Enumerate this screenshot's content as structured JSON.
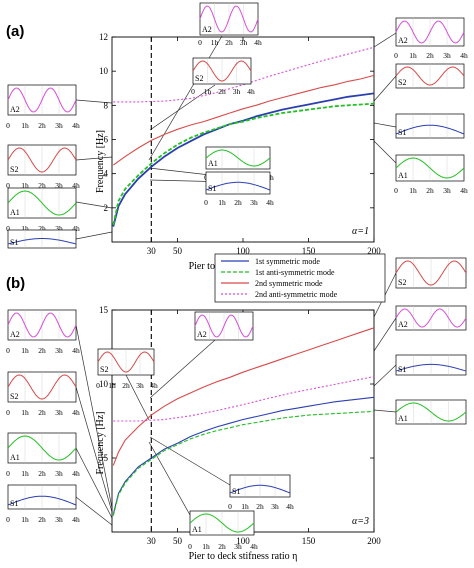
{
  "colors": {
    "sym1": "#2b3fb0",
    "anti1": "#22c122",
    "sym2": "#d94a4a",
    "anti2": "#d84fd8",
    "axis": "#000000",
    "leader": "#333333"
  },
  "legend": {
    "sym1": "1st symmetric mode",
    "anti1": "1st anti-symmetric mode",
    "sym2": "2nd symmetric mode",
    "anti2": "2nd anti-symmetric mode"
  },
  "inset_ticks": [
    "0",
    "1h",
    "2h",
    "3h",
    "4h"
  ],
  "chart_data": [
    {
      "panel": "(a)",
      "type": "line",
      "xlabel": "Pier to deck stifness ratio η",
      "ylabel": "Frequency [Hz]",
      "xlim": [
        0,
        200
      ],
      "ylim": [
        0,
        12
      ],
      "xticks": [
        "30",
        "50",
        "100",
        "150",
        "200"
      ],
      "yticks": [
        "2",
        "4",
        "6",
        "8",
        "10",
        "12"
      ],
      "annotation": "α=1",
      "marker_x": 30,
      "series": [
        {
          "key": "sym1",
          "x": [
            1,
            5,
            10,
            20,
            30,
            40,
            50,
            60,
            70,
            80,
            90,
            100,
            110,
            120,
            130,
            140,
            150,
            160,
            170,
            180,
            190,
            200
          ],
          "y": [
            0.9,
            2.1,
            2.8,
            3.7,
            4.4,
            5.0,
            5.5,
            5.9,
            6.3,
            6.6,
            6.9,
            7.1,
            7.35,
            7.55,
            7.75,
            7.9,
            8.05,
            8.2,
            8.35,
            8.5,
            8.6,
            8.7
          ]
        },
        {
          "key": "anti1",
          "x": [
            1,
            5,
            10,
            20,
            30,
            40,
            50,
            60,
            70,
            80,
            90,
            100,
            110,
            120,
            130,
            140,
            150,
            160,
            170,
            180,
            190,
            200
          ],
          "y": [
            1.0,
            2.4,
            3.1,
            3.9,
            4.6,
            5.2,
            5.7,
            6.1,
            6.4,
            6.65,
            6.9,
            7.05,
            7.25,
            7.4,
            7.55,
            7.65,
            7.75,
            7.85,
            7.95,
            8.0,
            8.05,
            8.1
          ]
        },
        {
          "key": "sym2",
          "x": [
            1,
            10,
            20,
            30,
            40,
            50,
            60,
            70,
            80,
            90,
            100,
            110,
            120,
            130,
            140,
            150,
            160,
            170,
            180,
            190,
            200
          ],
          "y": [
            4.5,
            5.0,
            5.5,
            5.95,
            6.3,
            6.6,
            6.85,
            7.05,
            7.3,
            7.55,
            7.8,
            8.0,
            8.25,
            8.45,
            8.65,
            8.85,
            9.05,
            9.2,
            9.4,
            9.55,
            9.75
          ]
        },
        {
          "key": "anti2",
          "x": [
            1,
            20,
            40,
            60,
            80,
            100,
            120,
            140,
            160,
            180,
            200
          ],
          "y": [
            8.2,
            8.2,
            8.25,
            8.4,
            8.75,
            9.2,
            9.7,
            10.15,
            10.6,
            11.0,
            11.4
          ]
        }
      ],
      "insets": [
        {
          "label": "A2",
          "mode": "anti2"
        },
        {
          "label": "S2",
          "mode": "sym2"
        },
        {
          "label": "A1",
          "mode": "anti1"
        },
        {
          "label": "S1",
          "mode": "sym1"
        },
        {
          "label": "A2",
          "mode": "anti2"
        },
        {
          "label": "S2",
          "mode": "sym2"
        },
        {
          "label": "A1",
          "mode": "anti1"
        },
        {
          "label": "S1",
          "mode": "sym1"
        },
        {
          "label": "A2",
          "mode": "anti2"
        },
        {
          "label": "S2",
          "mode": "sym2"
        },
        {
          "label": "S1",
          "mode": "sym1"
        },
        {
          "label": "A1",
          "mode": "anti1"
        }
      ]
    },
    {
      "panel": "(b)",
      "type": "line",
      "xlabel": "Pier to deck stifness ratio η",
      "ylabel": "Frequency [Hz]",
      "xlim": [
        0,
        200
      ],
      "ylim": [
        0,
        15
      ],
      "xticks": [
        "30",
        "50",
        "100",
        "150",
        "200"
      ],
      "yticks": [
        "5",
        "10",
        "15"
      ],
      "annotation": "α=3",
      "marker_x": 30,
      "series": [
        {
          "key": "sym1",
          "x": [
            1,
            5,
            10,
            20,
            30,
            40,
            50,
            60,
            70,
            80,
            90,
            100,
            110,
            120,
            130,
            140,
            150,
            160,
            170,
            180,
            190,
            200
          ],
          "y": [
            1.2,
            2.6,
            3.4,
            4.4,
            5.0,
            5.6,
            6.0,
            6.45,
            6.8,
            7.1,
            7.35,
            7.6,
            7.8,
            8.0,
            8.2,
            8.35,
            8.5,
            8.65,
            8.8,
            8.9,
            9.0,
            9.1
          ]
        },
        {
          "key": "anti1",
          "x": [
            1,
            5,
            10,
            20,
            30,
            40,
            50,
            60,
            70,
            80,
            90,
            100,
            110,
            120,
            130,
            140,
            150,
            160,
            170,
            180,
            190,
            200
          ],
          "y": [
            1.1,
            2.5,
            3.3,
            4.3,
            4.9,
            5.5,
            5.9,
            6.3,
            6.6,
            6.85,
            7.05,
            7.25,
            7.4,
            7.55,
            7.7,
            7.8,
            7.9,
            7.95,
            8.0,
            8.05,
            8.1,
            8.15
          ]
        },
        {
          "key": "sym2",
          "x": [
            1,
            5,
            10,
            20,
            30,
            40,
            50,
            60,
            70,
            80,
            90,
            100,
            110,
            120,
            130,
            140,
            150,
            160,
            170,
            180,
            190,
            200
          ],
          "y": [
            4.5,
            5.4,
            6.2,
            7.1,
            7.9,
            8.5,
            9.0,
            9.4,
            9.8,
            10.15,
            10.45,
            10.8,
            11.1,
            11.4,
            11.7,
            12.0,
            12.3,
            12.6,
            12.9,
            13.2,
            13.5,
            13.8
          ]
        },
        {
          "key": "anti2",
          "x": [
            1,
            20,
            40,
            60,
            80,
            100,
            120,
            140,
            160,
            180,
            200
          ],
          "y": [
            7.5,
            7.5,
            7.6,
            7.85,
            8.2,
            8.6,
            9.05,
            9.45,
            9.8,
            10.15,
            10.5
          ]
        }
      ],
      "insets": [
        {
          "label": "A2",
          "mode": "anti2"
        },
        {
          "label": "S2",
          "mode": "sym2"
        },
        {
          "label": "A1",
          "mode": "anti1"
        },
        {
          "label": "S1",
          "mode": "sym1"
        },
        {
          "label": "S2",
          "mode": "sym2"
        },
        {
          "label": "A2",
          "mode": "anti2"
        },
        {
          "label": "S1",
          "mode": "sym1"
        },
        {
          "label": "A1",
          "mode": "anti1"
        },
        {
          "label": "S2",
          "mode": "sym2"
        },
        {
          "label": "A2",
          "mode": "anti2"
        },
        {
          "label": "S1",
          "mode": "sym1"
        },
        {
          "label": "A1",
          "mode": "anti1"
        }
      ]
    }
  ]
}
